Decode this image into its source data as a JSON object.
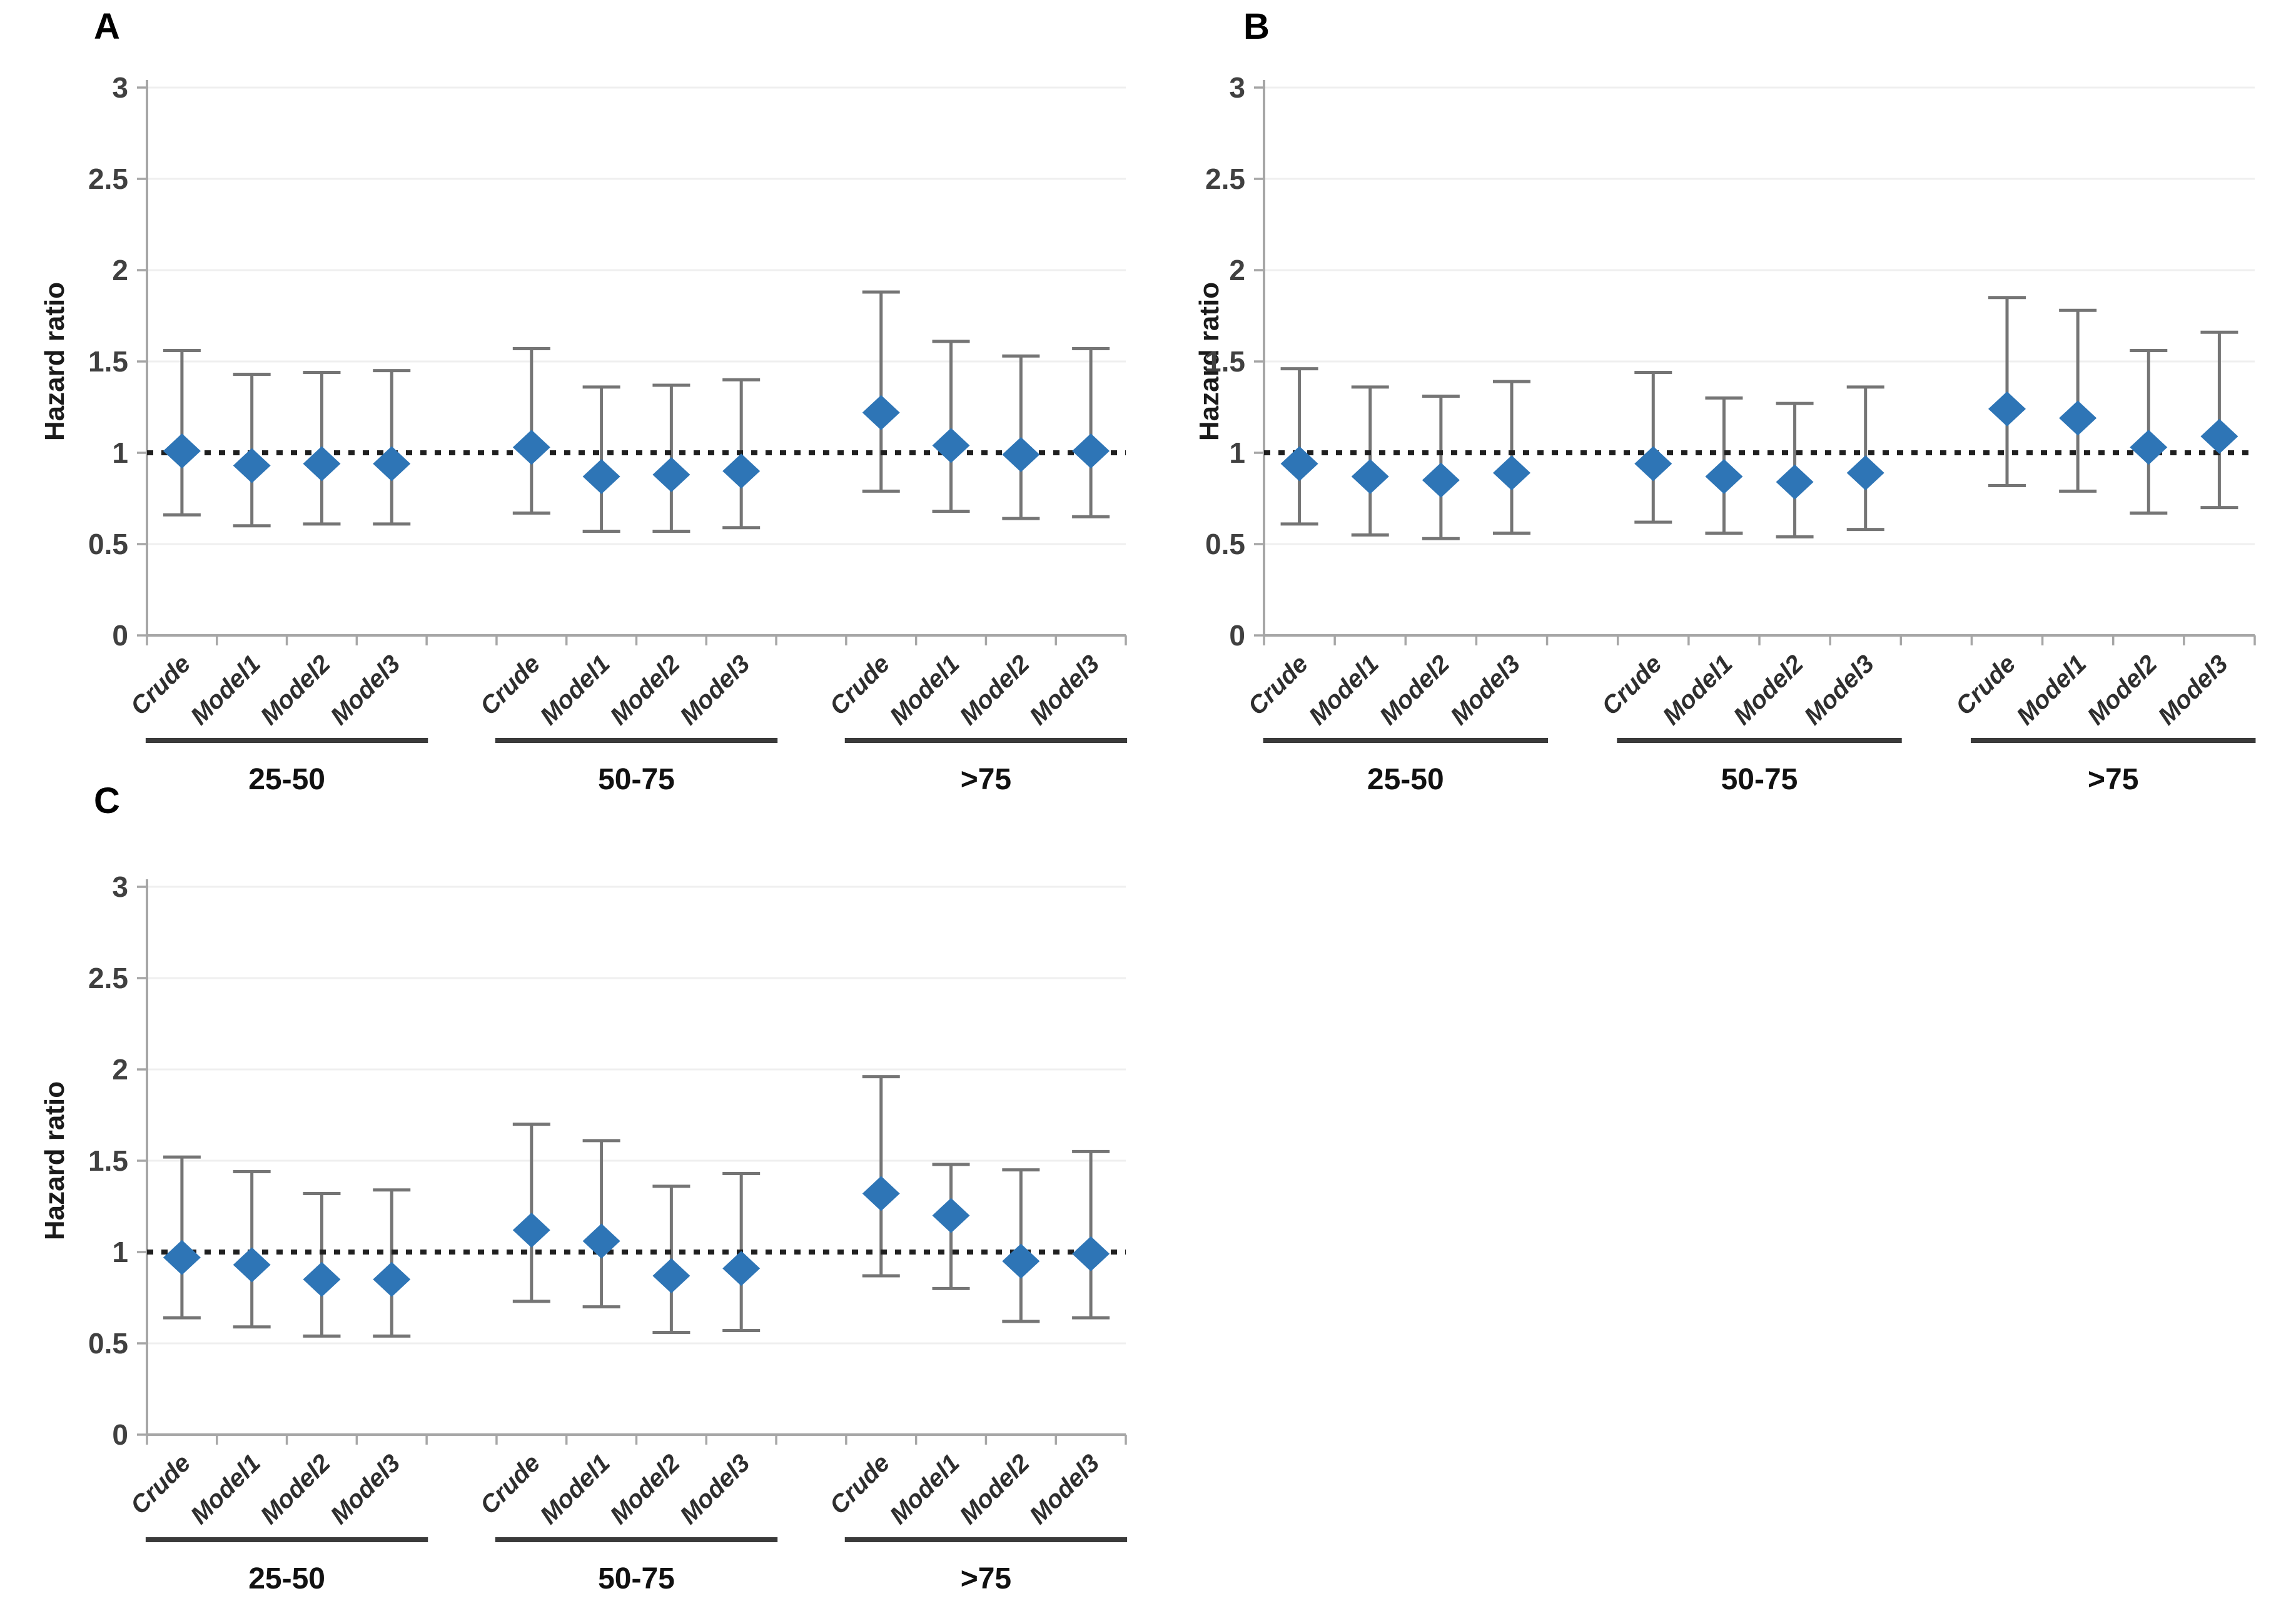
{
  "style": {
    "background": "#ffffff",
    "marker_color": "#2E75B6",
    "errorbar_color": "#757575",
    "gridline_color": "#EFEFEF",
    "axis_color": "#A6A6A6",
    "reference_line_color": "#1f1f1f",
    "group_line_color": "#3a3a3a"
  },
  "y_axis": {
    "title": "Hazard ratio"
  },
  "chart_data": [
    {
      "type": "scatter",
      "panel": "A",
      "ylabel": "Hazard ratio",
      "ylim": [
        0,
        3
      ],
      "yticks": [
        0,
        0.5,
        1,
        1.5,
        2,
        2.5,
        3
      ],
      "reference_line": 1,
      "marker": "diamond",
      "grid": true,
      "legend": "none",
      "groups": [
        {
          "label": "25-50",
          "points": [
            {
              "label": "Crude",
              "value": 1.01,
              "lower": 0.66,
              "upper": 1.56
            },
            {
              "label": "Model1",
              "value": 0.93,
              "lower": 0.6,
              "upper": 1.43
            },
            {
              "label": "Model2",
              "value": 0.94,
              "lower": 0.61,
              "upper": 1.44
            },
            {
              "label": "Model3",
              "value": 0.94,
              "lower": 0.61,
              "upper": 1.45
            }
          ]
        },
        {
          "label": "50-75",
          "points": [
            {
              "label": "Crude",
              "value": 1.03,
              "lower": 0.67,
              "upper": 1.57
            },
            {
              "label": "Model1",
              "value": 0.87,
              "lower": 0.57,
              "upper": 1.36
            },
            {
              "label": "Model2",
              "value": 0.88,
              "lower": 0.57,
              "upper": 1.37
            },
            {
              "label": "Model3",
              "value": 0.9,
              "lower": 0.59,
              "upper": 1.4
            }
          ]
        },
        {
          "label": ">75",
          "points": [
            {
              "label": "Crude",
              "value": 1.22,
              "lower": 0.79,
              "upper": 1.88
            },
            {
              "label": "Model1",
              "value": 1.04,
              "lower": 0.68,
              "upper": 1.61
            },
            {
              "label": "Model2",
              "value": 0.99,
              "lower": 0.64,
              "upper": 1.53
            },
            {
              "label": "Model3",
              "value": 1.01,
              "lower": 0.65,
              "upper": 1.57
            }
          ]
        }
      ]
    },
    {
      "type": "scatter",
      "panel": "B",
      "ylabel": "Hazard ratio",
      "ylim": [
        0,
        3
      ],
      "yticks": [
        0,
        0.5,
        1,
        1.5,
        2,
        2.5,
        3
      ],
      "reference_line": 1,
      "marker": "diamond",
      "grid": true,
      "legend": "none",
      "groups": [
        {
          "label": "25-50",
          "points": [
            {
              "label": "Crude",
              "value": 0.94,
              "lower": 0.61,
              "upper": 1.46
            },
            {
              "label": "Model1",
              "value": 0.87,
              "lower": 0.55,
              "upper": 1.36
            },
            {
              "label": "Model2",
              "value": 0.85,
              "lower": 0.53,
              "upper": 1.31
            },
            {
              "label": "Model3",
              "value": 0.89,
              "lower": 0.56,
              "upper": 1.39
            }
          ]
        },
        {
          "label": "50-75",
          "points": [
            {
              "label": "Crude",
              "value": 0.94,
              "lower": 0.62,
              "upper": 1.44
            },
            {
              "label": "Model1",
              "value": 0.87,
              "lower": 0.56,
              "upper": 1.3
            },
            {
              "label": "Model2",
              "value": 0.84,
              "lower": 0.54,
              "upper": 1.27
            },
            {
              "label": "Model3",
              "value": 0.89,
              "lower": 0.58,
              "upper": 1.36
            }
          ]
        },
        {
          "label": ">75",
          "points": [
            {
              "label": "Crude",
              "value": 1.24,
              "lower": 0.82,
              "upper": 1.85
            },
            {
              "label": "Model1",
              "value": 1.19,
              "lower": 0.79,
              "upper": 1.78
            },
            {
              "label": "Model2",
              "value": 1.03,
              "lower": 0.67,
              "upper": 1.56
            },
            {
              "label": "Model3",
              "value": 1.09,
              "lower": 0.7,
              "upper": 1.66
            }
          ]
        }
      ]
    },
    {
      "type": "scatter",
      "panel": "C",
      "ylabel": "Hazard ratio",
      "ylim": [
        0,
        3
      ],
      "yticks": [
        0,
        0.5,
        1,
        1.5,
        2,
        2.5,
        3
      ],
      "reference_line": 1,
      "marker": "diamond",
      "grid": true,
      "legend": "none",
      "groups": [
        {
          "label": "25-50",
          "points": [
            {
              "label": "Crude",
              "value": 0.97,
              "lower": 0.64,
              "upper": 1.52
            },
            {
              "label": "Model1",
              "value": 0.93,
              "lower": 0.59,
              "upper": 1.44
            },
            {
              "label": "Model2",
              "value": 0.85,
              "lower": 0.54,
              "upper": 1.32
            },
            {
              "label": "Model3",
              "value": 0.85,
              "lower": 0.54,
              "upper": 1.34
            }
          ]
        },
        {
          "label": "50-75",
          "points": [
            {
              "label": "Crude",
              "value": 1.12,
              "lower": 0.73,
              "upper": 1.7
            },
            {
              "label": "Model1",
              "value": 1.06,
              "lower": 0.7,
              "upper": 1.61
            },
            {
              "label": "Model2",
              "value": 0.87,
              "lower": 0.56,
              "upper": 1.36
            },
            {
              "label": "Model3",
              "value": 0.91,
              "lower": 0.57,
              "upper": 1.43
            }
          ]
        },
        {
          "label": ">75",
          "points": [
            {
              "label": "Crude",
              "value": 1.32,
              "lower": 0.87,
              "upper": 1.96
            },
            {
              "label": "Model1",
              "value": 1.2,
              "lower": 0.8,
              "upper": 1.48
            },
            {
              "label": "Model2",
              "value": 0.95,
              "lower": 0.62,
              "upper": 1.45
            },
            {
              "label": "Model3",
              "value": 0.99,
              "lower": 0.64,
              "upper": 1.55
            }
          ]
        }
      ]
    }
  ]
}
